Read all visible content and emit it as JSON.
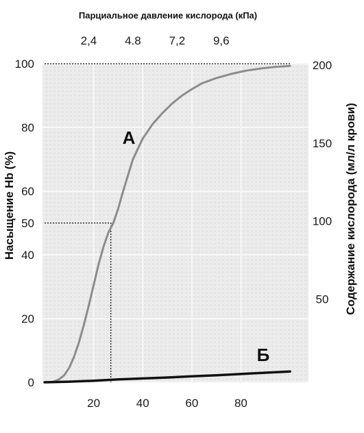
{
  "chart_data": {
    "type": "line",
    "top_axis": {
      "title": "Парциальное давление кислорода (кПа)",
      "tick_labels": [
        "2,4",
        "4.8",
        "7,2",
        "9,6"
      ],
      "tick_positions_mmHg": [
        18,
        36,
        54,
        72
      ]
    },
    "x": {
      "ticks": [
        20,
        40,
        60,
        80
      ],
      "tick_labels": [
        "20",
        "40",
        "60",
        "80"
      ],
      "range": [
        0,
        100
      ]
    },
    "y_left": {
      "title": "Насыщение Hb (%)",
      "ticks": [
        0,
        20,
        40,
        50,
        60,
        80,
        100
      ],
      "tick_labels": [
        "0",
        "20",
        "40",
        "50",
        "60",
        "80",
        "100"
      ],
      "range": [
        0,
        100
      ]
    },
    "y_right": {
      "title": "Содержание кислорода  (мл/л крови)",
      "ticks": [
        50,
        100,
        150,
        200
      ],
      "tick_labels": [
        "50",
        "100",
        "150",
        "200"
      ],
      "range": [
        0,
        200
      ]
    },
    "series": [
      {
        "name": "А",
        "color": "#8c8c8c",
        "x": [
          0,
          2,
          4,
          6,
          8,
          10,
          12,
          14,
          16,
          18,
          20,
          22,
          24,
          26,
          28,
          30,
          32,
          34,
          36,
          40,
          44,
          48,
          52,
          56,
          60,
          64,
          70,
          76,
          82,
          88,
          94,
          100
        ],
        "y": [
          0,
          0,
          0.3,
          1.0,
          2.2,
          4.5,
          8.0,
          12.5,
          18.0,
          24.0,
          30.5,
          37.0,
          42.5,
          47.0,
          50.0,
          54.5,
          60.0,
          65.0,
          70.0,
          76.5,
          81.0,
          84.5,
          87.5,
          90.0,
          92.0,
          93.8,
          95.5,
          96.8,
          97.8,
          98.5,
          99.0,
          99.3
        ]
      },
      {
        "name": "Б",
        "color": "#111111",
        "x": [
          0,
          10,
          20,
          30,
          40,
          50,
          60,
          70,
          80,
          90,
          100
        ],
        "y": [
          0,
          0.2,
          0.5,
          0.9,
          1.2,
          1.5,
          1.9,
          2.2,
          2.6,
          3.0,
          3.4
        ]
      }
    ],
    "reference_lines": [
      {
        "from": [
          0,
          50
        ],
        "to": [
          27,
          50
        ],
        "then_to": [
          27,
          0
        ]
      },
      {
        "from": [
          0,
          100
        ],
        "to": [
          100,
          100
        ]
      }
    ],
    "grid": true
  }
}
